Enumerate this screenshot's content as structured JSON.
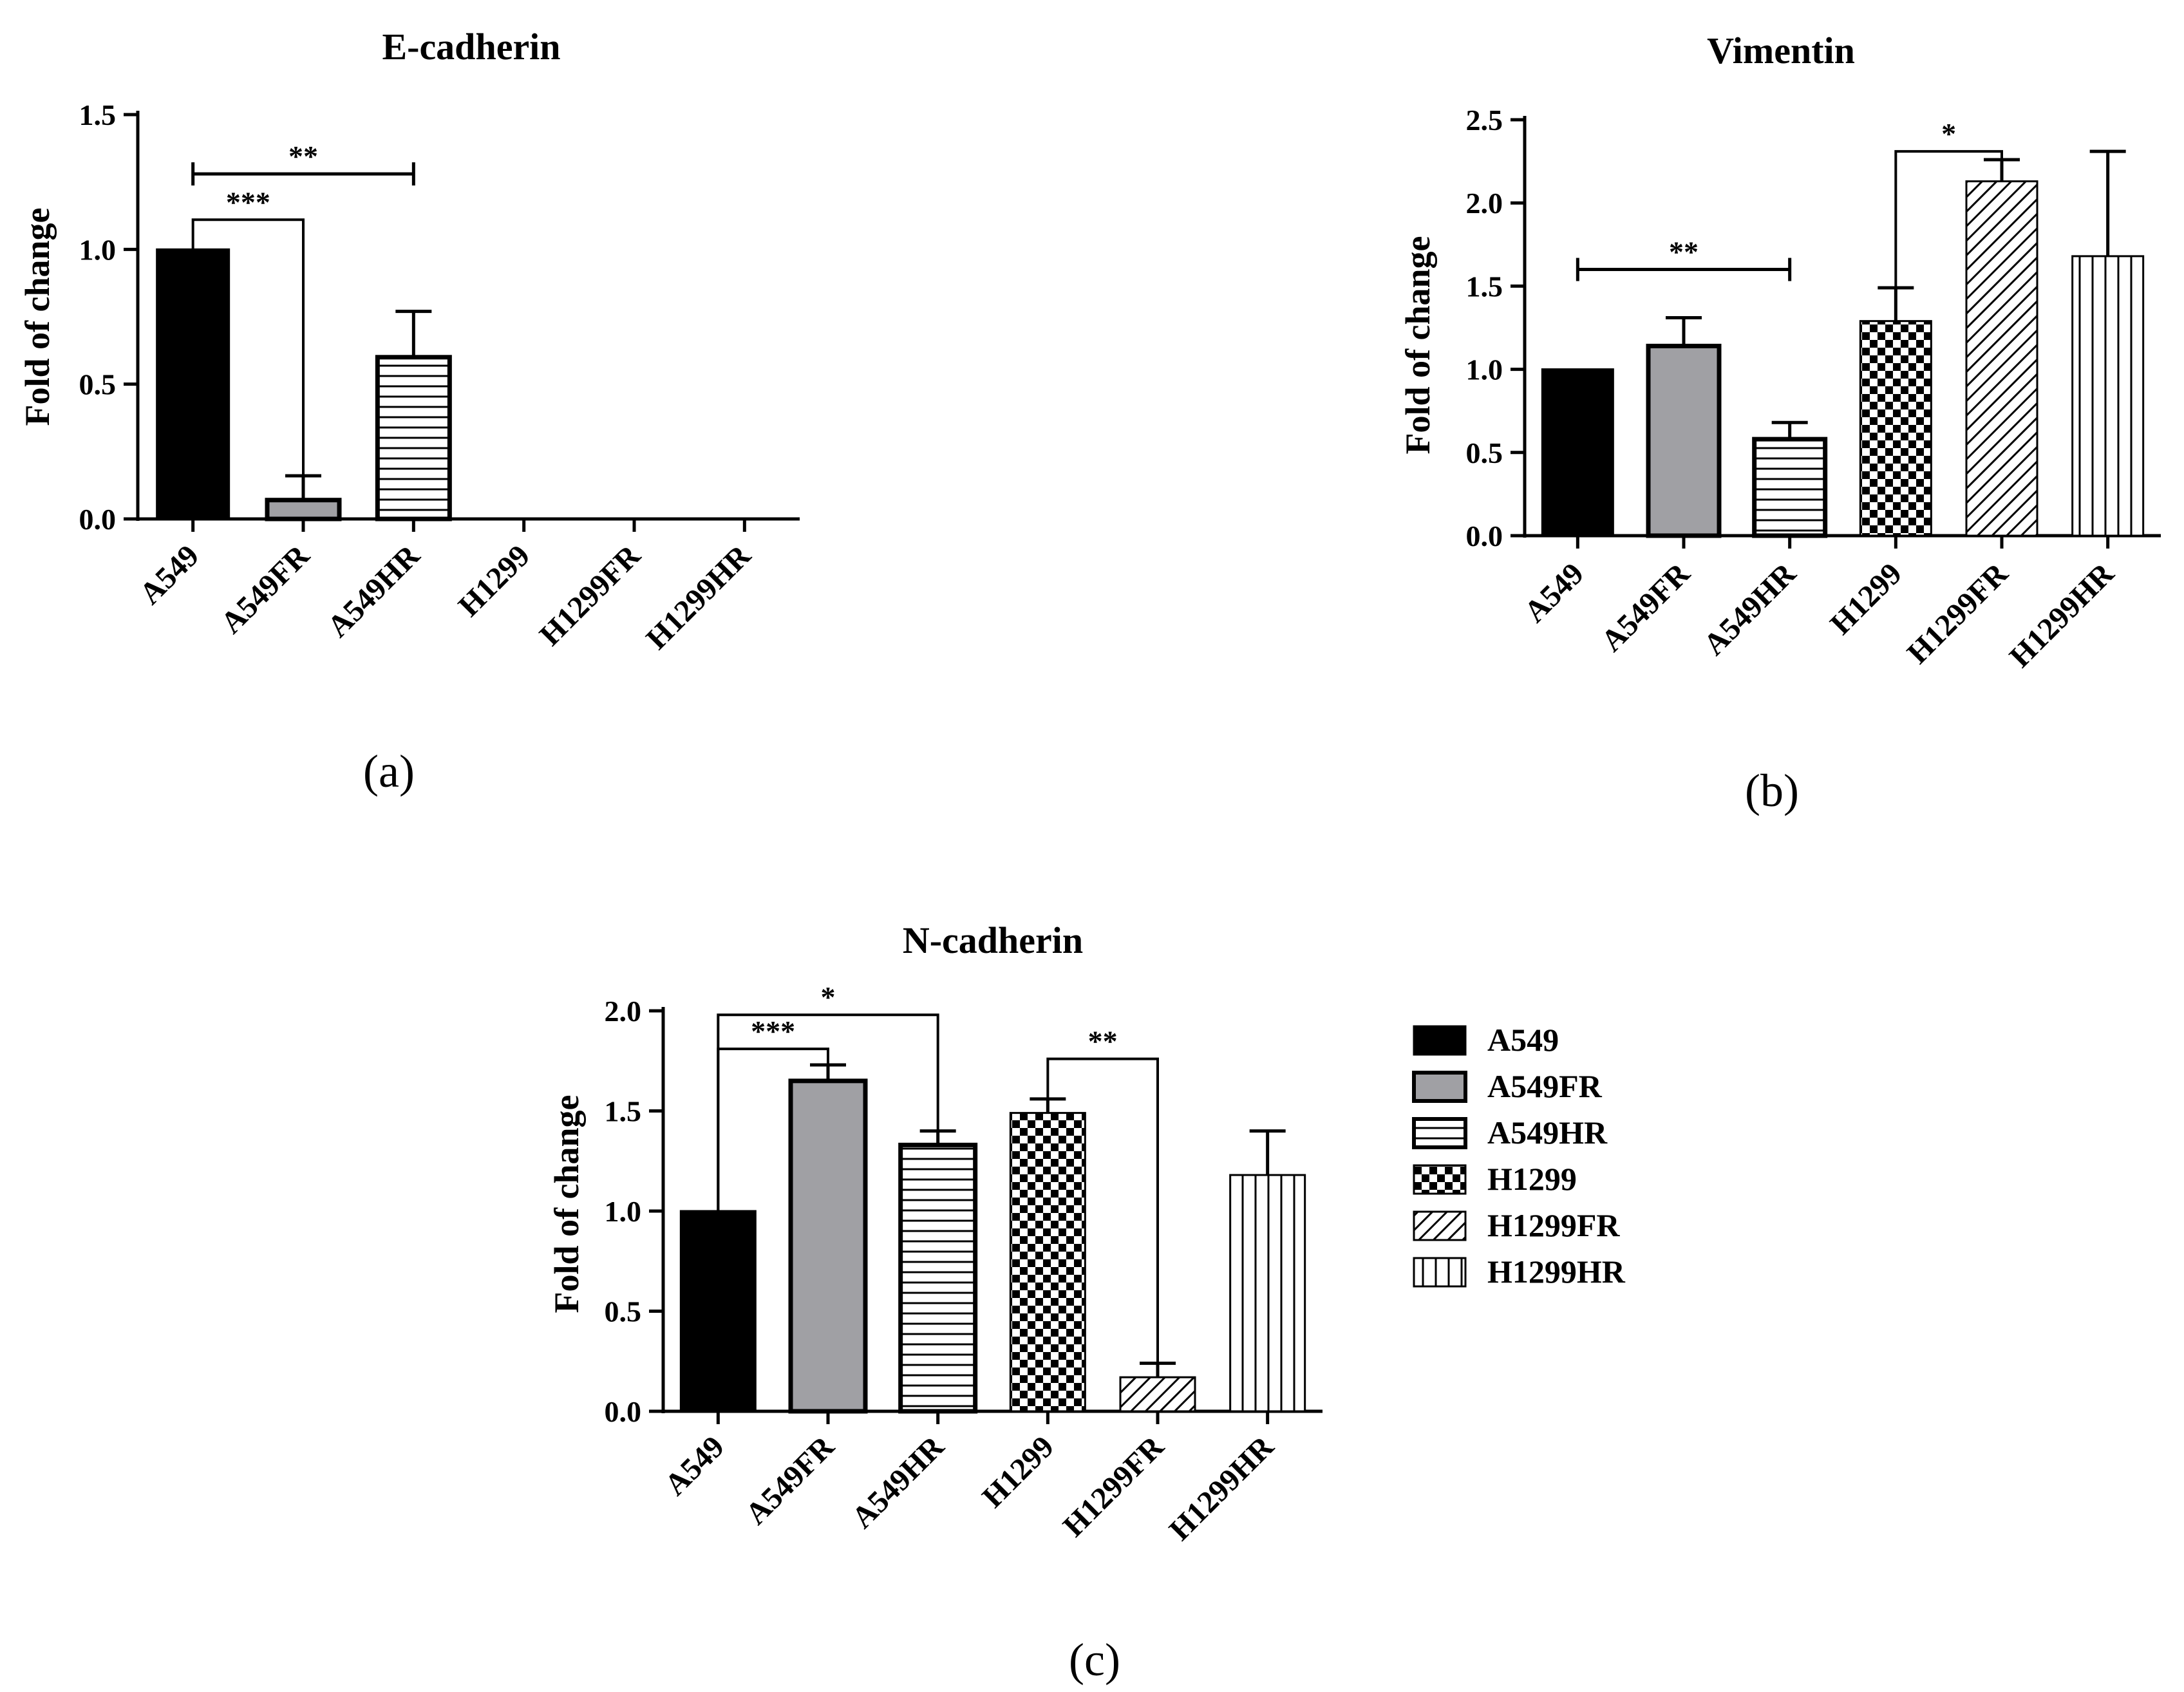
{
  "colors": {
    "ink": "#000000",
    "grey_fill": "#a0a0a4",
    "background": "#ffffff"
  },
  "pattern_names": {
    "A549": "solid-black",
    "A549FR": "solid-grey",
    "A549HR": "horizontal-lines",
    "H1299": "checkerboard",
    "H1299FR": "diagonal-hatch",
    "H1299HR": "vertical-lines"
  },
  "legend": {
    "entries": [
      "A549",
      "A549FR",
      "A549HR",
      "H1299",
      "H1299FR",
      "H1299HR"
    ]
  },
  "chart_data": [
    {
      "panel": "(a)",
      "type": "bar",
      "title": "E-cadherin",
      "xlabel": "",
      "ylabel": "Fold of change",
      "ylim": [
        0,
        1.5
      ],
      "yticks": [
        "0.0",
        "0.5",
        "1.0",
        "1.5"
      ],
      "ytick_values": [
        0,
        0.5,
        1.0,
        1.5
      ],
      "categories": [
        "A549",
        "A549FR",
        "A549HR",
        "H1299",
        "H1299FR",
        "H1299HR"
      ],
      "values": [
        1.0,
        0.07,
        0.6,
        0,
        0,
        0
      ],
      "errors": [
        0,
        0.09,
        0.17,
        0,
        0,
        0
      ],
      "significance": [
        {
          "from": 0,
          "to": 2,
          "label": "**",
          "y": 1.28,
          "style": "bar"
        },
        {
          "from": 0,
          "to": 1,
          "label": "***",
          "y": 1.11,
          "style": "bracket"
        }
      ]
    },
    {
      "panel": "(b)",
      "type": "bar",
      "title": "Vimentin",
      "xlabel": "",
      "ylabel": "Fold of change",
      "ylim": [
        0,
        2.5
      ],
      "yticks": [
        "0.0",
        "0.5",
        "1.0",
        "1.5",
        "2.0",
        "2.5"
      ],
      "ytick_values": [
        0,
        0.5,
        1.0,
        1.5,
        2.0,
        2.5
      ],
      "categories": [
        "A549",
        "A549FR",
        "A549HR",
        "H1299",
        "H1299FR",
        "H1299HR"
      ],
      "values": [
        1.0,
        1.14,
        0.58,
        1.29,
        2.13,
        1.68
      ],
      "errors": [
        0,
        0.17,
        0.1,
        0.2,
        0.13,
        0.63
      ],
      "significance": [
        {
          "from": 0,
          "to": 2,
          "label": "**",
          "y": 1.6,
          "style": "bar"
        },
        {
          "from": 3,
          "to": 4,
          "label": "*",
          "y": 2.31,
          "style": "bracket"
        }
      ]
    },
    {
      "panel": "(c)",
      "type": "bar",
      "title": "N-cadherin",
      "xlabel": "",
      "ylabel": "Fold of change",
      "ylim": [
        0,
        2.0
      ],
      "yticks": [
        "0.0",
        "0.5",
        "1.0",
        "1.5",
        "2.0"
      ],
      "ytick_values": [
        0,
        0.5,
        1.0,
        1.5,
        2.0
      ],
      "categories": [
        "A549",
        "A549FR",
        "A549HR",
        "H1299",
        "H1299FR",
        "H1299HR"
      ],
      "values": [
        1.0,
        1.65,
        1.33,
        1.49,
        0.17,
        1.18
      ],
      "errors": [
        0,
        0.08,
        0.07,
        0.07,
        0.07,
        0.22
      ],
      "significance": [
        {
          "from": 0,
          "to": 2,
          "label": "*",
          "y": 1.98,
          "style": "bracket"
        },
        {
          "from": 0,
          "to": 1,
          "label": "***",
          "y": 1.81,
          "style": "bracket"
        },
        {
          "from": 3,
          "to": 4,
          "label": "**",
          "y": 1.76,
          "style": "bracket"
        }
      ]
    }
  ]
}
